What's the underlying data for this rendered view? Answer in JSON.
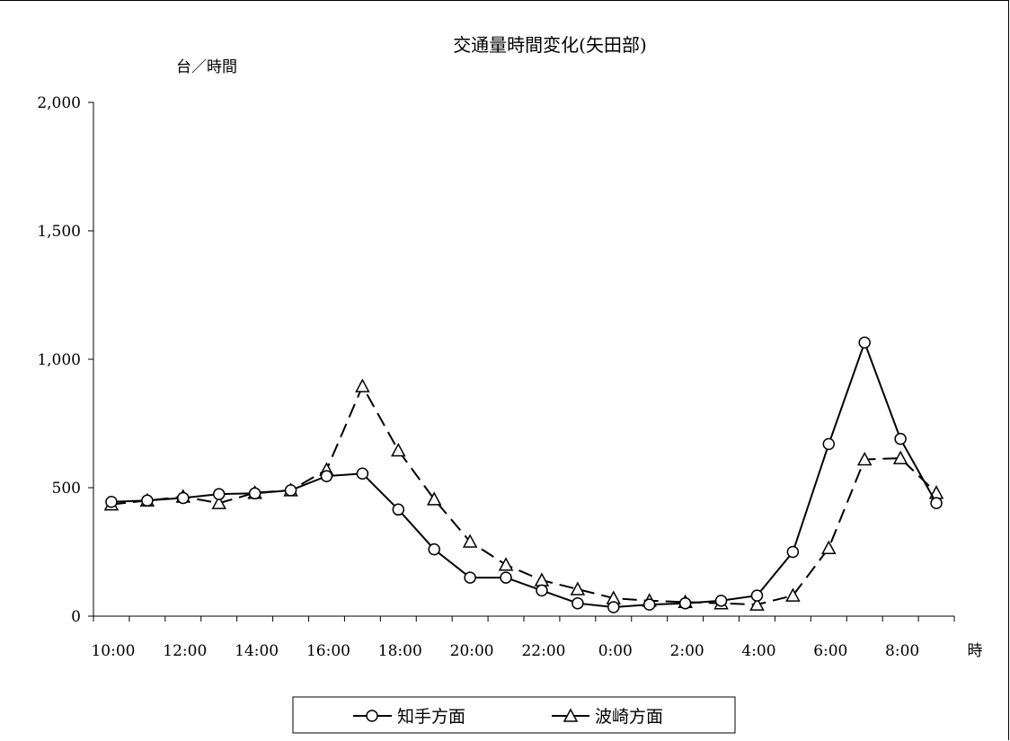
{
  "chart_data": {
    "type": "line",
    "title": "交通量時間変化(矢田部)",
    "ylabel": "台／時間",
    "xlabel": "時",
    "ylim": [
      0,
      2000
    ],
    "yticks": [
      0,
      500,
      1000,
      1500,
      2000
    ],
    "ytick_labels": [
      "0",
      "500",
      "1,000",
      "1,500",
      "2,000"
    ],
    "categories": [
      "10:00",
      "11:00",
      "12:00",
      "13:00",
      "14:00",
      "15:00",
      "16:00",
      "17:00",
      "18:00",
      "19:00",
      "20:00",
      "21:00",
      "22:00",
      "23:00",
      "0:00",
      "1:00",
      "2:00",
      "3:00",
      "4:00",
      "5:00",
      "6:00",
      "7:00",
      "8:00",
      "9:00"
    ],
    "x_tick_labels": [
      "10:00",
      "12:00",
      "14:00",
      "16:00",
      "18:00",
      "20:00",
      "22:00",
      "0:00",
      "2:00",
      "4:00",
      "6:00",
      "8:00"
    ],
    "grid": false,
    "legend_position": "bottom",
    "series": [
      {
        "name": "知手方面",
        "marker": "circle",
        "line": "solid",
        "values": [
          445,
          450,
          460,
          475,
          478,
          490,
          545,
          555,
          415,
          260,
          150,
          150,
          100,
          50,
          35,
          45,
          50,
          60,
          80,
          250,
          670,
          1065,
          690,
          440
        ]
      },
      {
        "name": "波崎方面",
        "marker": "triangle",
        "line": "dashed",
        "values": [
          435,
          450,
          465,
          440,
          480,
          490,
          570,
          895,
          645,
          455,
          290,
          200,
          140,
          105,
          70,
          60,
          55,
          50,
          45,
          80,
          265,
          610,
          615,
          480
        ]
      }
    ]
  }
}
